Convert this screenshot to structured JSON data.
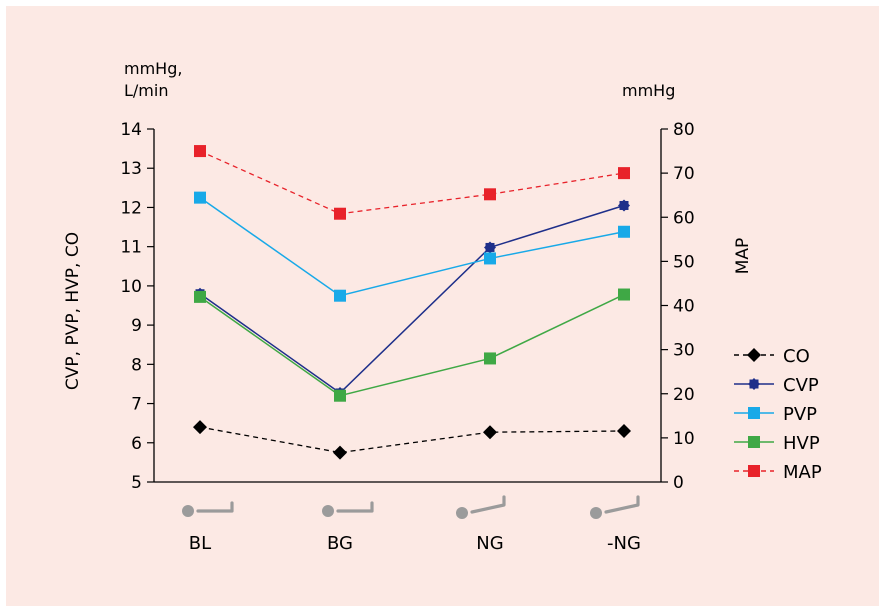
{
  "chart_data": {
    "type": "line",
    "categories": [
      "BL",
      "BG",
      "NG",
      "-NG"
    ],
    "left_unit_line1": "mmHg,",
    "left_unit_line2": "L/min",
    "right_unit": "mmHg",
    "left_axis_label": "CVP, PVP, HVP, CO",
    "right_axis_label": "MAP",
    "left_ylim": [
      5,
      14
    ],
    "left_ticks": [
      5,
      6,
      7,
      8,
      9,
      10,
      11,
      12,
      13,
      14
    ],
    "right_ylim": [
      0,
      80
    ],
    "right_ticks": [
      0,
      10,
      20,
      30,
      40,
      50,
      60,
      70,
      80
    ],
    "grid": false,
    "legend_position": "right",
    "series": [
      {
        "name": "CO",
        "axis": "left",
        "values": [
          6.4,
          5.75,
          6.27,
          6.3
        ],
        "color": "#000000",
        "marker": "diamond",
        "dashed": true
      },
      {
        "name": "CVP",
        "axis": "left",
        "values": [
          9.8,
          7.27,
          10.98,
          12.05
        ],
        "color": "#1e2f8a",
        "marker": "diamond-square",
        "dashed": false
      },
      {
        "name": "PVP",
        "axis": "left",
        "values": [
          12.25,
          9.75,
          10.7,
          11.38
        ],
        "color": "#18a9e8",
        "marker": "square",
        "dashed": false
      },
      {
        "name": "HVP",
        "axis": "left",
        "values": [
          9.72,
          7.2,
          8.15,
          9.78
        ],
        "color": "#3fa845",
        "marker": "square",
        "dashed": false
      },
      {
        "name": "MAP",
        "axis": "right",
        "values": [
          75,
          60.8,
          65.2,
          70
        ],
        "color": "#e8222a",
        "marker": "square",
        "dashed": true
      }
    ],
    "position_icons": [
      "flat-position-icon",
      "flat-position-icon",
      "tilted-position-icon",
      "tilted-position-icon"
    ]
  }
}
